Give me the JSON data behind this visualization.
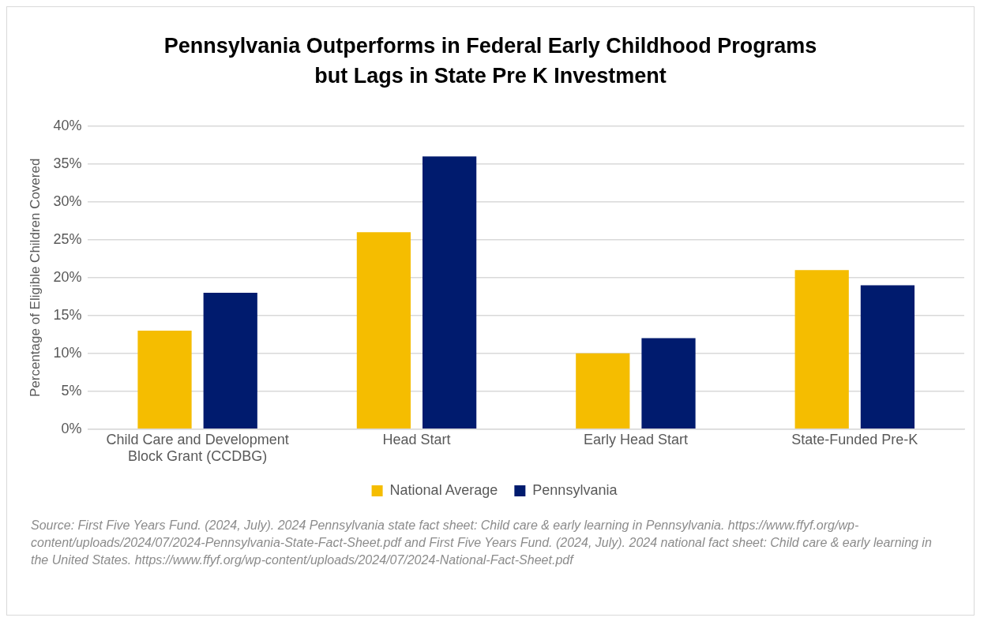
{
  "chart_data": {
    "type": "bar",
    "title": "Pennsylvania Outperforms in Federal Early Childhood Programs\nbut Lags in State Pre K Investment",
    "ylabel": "Percentage of Eligible Children Covered",
    "categories": [
      "Child Care and Development Block Grant (CCDBG)",
      "Head Start",
      "Early Head Start",
      "State-Funded Pre-K"
    ],
    "series": [
      {
        "name": "National Average",
        "color": "#f5bd00",
        "values": [
          13,
          26,
          10,
          21
        ]
      },
      {
        "name": "Pennsylvania",
        "color": "#001b6e",
        "values": [
          18,
          36,
          12,
          19
        ]
      }
    ],
    "ylim": [
      0,
      40
    ],
    "yticks": [
      {
        "value": 0,
        "label": "0%"
      },
      {
        "value": 5,
        "label": "5%"
      },
      {
        "value": 10,
        "label": "10%"
      },
      {
        "value": 15,
        "label": "15%"
      },
      {
        "value": 20,
        "label": "20%"
      },
      {
        "value": 25,
        "label": "25%"
      },
      {
        "value": 30,
        "label": "30%"
      },
      {
        "value": 35,
        "label": "35%"
      },
      {
        "value": 40,
        "label": "40%"
      }
    ],
    "grid": "y",
    "legend": "bottom",
    "annotations": [
      "Source: First Five Years Fund. (2024, July). 2024 Pennsylvania state fact sheet: Child care & early learning in Pennsylvania. https://www.ffyf.org/wp-content/uploads/2024/07/2024-Pennsylvania-State-Fact-Sheet.pdf and First Five Years Fund. (2024, July). 2024 national fact sheet: Child care & early learning in the United States. https://www.ffyf.org/wp-content/uploads/2024/07/2024-National-Fact-Sheet.pdf"
    ]
  }
}
